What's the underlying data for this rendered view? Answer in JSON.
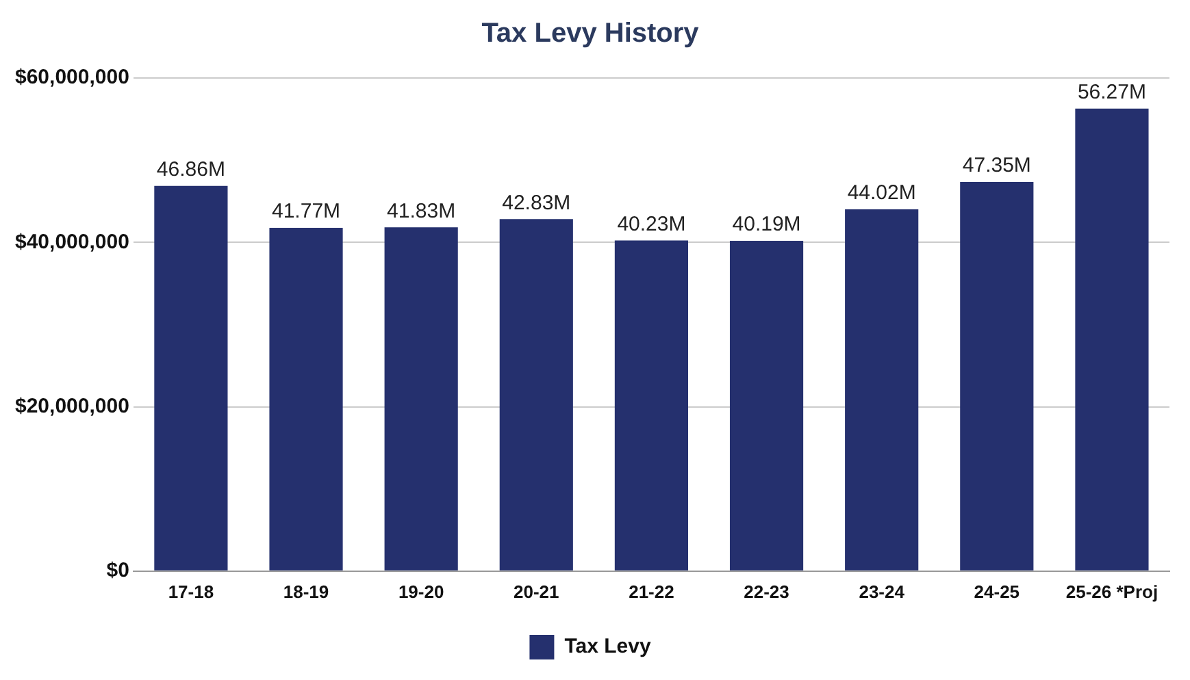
{
  "chart_data": {
    "type": "bar",
    "title": "Tax Levy History",
    "categories": [
      "17-18",
      "18-19",
      "19-20",
      "20-21",
      "21-22",
      "22-23",
      "23-24",
      "24-25",
      "25-26 *Proj"
    ],
    "series": [
      {
        "name": "Tax Levy",
        "color": "#25306e",
        "values": [
          46860000,
          41770000,
          41830000,
          42830000,
          40230000,
          40190000,
          44020000,
          47350000,
          56270000
        ],
        "value_labels": [
          "46.86M",
          "41.77M",
          "41.83M",
          "42.83M",
          "40.23M",
          "40.19M",
          "44.02M",
          "47.35M",
          "56.27M"
        ]
      }
    ],
    "ylim": [
      0,
      60000000
    ],
    "yticks": [
      {
        "value": 0,
        "label": "$0"
      },
      {
        "value": 20000000,
        "label": "$20,000,000"
      },
      {
        "value": 40000000,
        "label": "$40,000,000"
      },
      {
        "value": 60000000,
        "label": "$60,000,000"
      }
    ],
    "grid": "y",
    "legend": "bottom"
  }
}
